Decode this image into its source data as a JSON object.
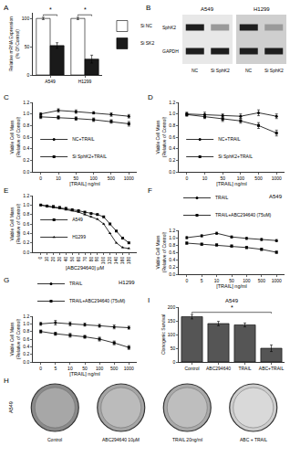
{
  "chart_data": [
    {
      "panel": "A",
      "type": "bar",
      "categories": [
        "A549",
        "H1299"
      ],
      "y_label": "Relative mRNA Expression\n(% Of Control)",
      "ylim": [
        0,
        110
      ],
      "yticks": [
        0,
        50,
        100
      ],
      "grid": false,
      "legend": "right",
      "series": [
        {
          "name": "Si NC",
          "color": "#ffffff",
          "values": [
            100,
            100
          ],
          "errors": [
            2,
            2
          ]
        },
        {
          "name": "Si SK2",
          "color": "#1a1a1a",
          "values": [
            52,
            28
          ],
          "errors": [
            5,
            7
          ]
        }
      ],
      "annotations": [
        {
          "text": "*",
          "x": "A549"
        },
        {
          "text": "*",
          "x": "H1299"
        }
      ]
    },
    {
      "panel": "C",
      "type": "line",
      "categories": [
        "0",
        "10",
        "50",
        "100",
        "500",
        "1000"
      ],
      "x_label": "[TRAIL] ng/ml",
      "y_label": "Viable Cell Mass\n(Relative of Control)",
      "ylim": [
        0,
        1.2
      ],
      "yticks": [
        {
          "value": 0,
          "label": "0.0"
        },
        0.2,
        0.4,
        0.6,
        0.8,
        {
          "value": 1,
          "label": "1.0"
        },
        1.2
      ],
      "grid": false,
      "legend": "bottom left",
      "series": [
        {
          "name": "NC+TRAIL",
          "color": "#000000",
          "marker": "circle",
          "values": [
            1.0,
            1.06,
            1.04,
            1.02,
            0.99,
            0.96
          ],
          "errors": [
            0.02,
            0.03,
            0.03,
            0.02,
            0.03,
            0.03
          ]
        },
        {
          "name": "Si SphK2+TRAIL",
          "color": "#000000",
          "marker": "square",
          "values": [
            0.95,
            0.94,
            0.92,
            0.9,
            0.87,
            0.83
          ],
          "errors": [
            0.03,
            0.03,
            0.03,
            0.03,
            0.03,
            0.04
          ]
        }
      ]
    },
    {
      "panel": "D",
      "type": "line",
      "categories": [
        "0",
        "10",
        "50",
        "100",
        "500",
        "1000"
      ],
      "x_label": "[TRAIL] ng/ml",
      "y_label": "Viable Cell Mass\n(Relative of Control)",
      "ylim": [
        0,
        1.2
      ],
      "yticks": [
        {
          "value": 0,
          "label": "0.0"
        },
        0.2,
        0.4,
        0.6,
        0.8,
        {
          "value": 1,
          "label": "1.0"
        },
        1.2
      ],
      "grid": false,
      "legend": "bottom left",
      "series": [
        {
          "name": "NC+TRAIL",
          "color": "#000000",
          "marker": "circle",
          "values": [
            1.0,
            0.99,
            0.97,
            0.96,
            1.02,
            0.96
          ],
          "errors": [
            0.03,
            0.04,
            0.03,
            0.04,
            0.05,
            0.04
          ]
        },
        {
          "name": "Si SphK2+TRAIL",
          "color": "#000000",
          "marker": "square",
          "values": [
            0.99,
            0.95,
            0.91,
            0.88,
            0.8,
            0.67
          ],
          "errors": [
            0.03,
            0.03,
            0.04,
            0.04,
            0.05,
            0.05
          ]
        }
      ]
    },
    {
      "panel": "E",
      "type": "line",
      "categories": [
        "0",
        "10",
        "20",
        "30",
        "40",
        "50",
        "60",
        "70",
        "80",
        "90",
        "100",
        "120",
        "140",
        "160",
        "180"
      ],
      "x_label": "[ABC294640] μM",
      "y_label": "Viable Cell Mass\n(Relative of Control)",
      "ylim": [
        0,
        1.2
      ],
      "yticks": [
        {
          "value": 0,
          "label": "0.0"
        },
        0.2,
        0.4,
        0.6,
        0.8,
        {
          "value": 1,
          "label": "1.0"
        },
        1.2
      ],
      "grid": false,
      "legend": "bottom left",
      "series": [
        {
          "name": "A549",
          "color": "#000000",
          "marker": "square",
          "values": [
            1.0,
            0.98,
            0.97,
            0.95,
            0.93,
            0.9,
            0.88,
            0.85,
            0.82,
            0.8,
            0.75,
            0.6,
            0.45,
            0.3,
            0.2
          ]
        },
        {
          "name": "H1299",
          "color": "#000000",
          "marker": "triangle-up",
          "values": [
            1.0,
            0.97,
            0.95,
            0.93,
            0.9,
            0.88,
            0.85,
            0.8,
            0.75,
            0.7,
            0.6,
            0.4,
            0.2,
            0.1,
            0.08
          ]
        }
      ]
    },
    {
      "panel": "F",
      "type": "line",
      "title": "A549",
      "categories": [
        "0",
        "5",
        "10",
        "50",
        "100",
        "500",
        "1000"
      ],
      "x_label": "[TRAIL] ng/ml",
      "y_label": "Viable Cell Mass\n(Relative of Control)",
      "ylim": [
        0,
        1.2
      ],
      "yticks": [
        {
          "value": 0,
          "label": "0.0"
        },
        0.2,
        0.4,
        0.6,
        0.8,
        {
          "value": 1,
          "label": "1.0"
        },
        1.2
      ],
      "grid": false,
      "legend": "top",
      "series": [
        {
          "name": "TRAIL",
          "color": "#000000",
          "marker": "circle",
          "values": [
            1.0,
            1.05,
            1.12,
            1.02,
            0.98,
            0.95,
            0.92
          ],
          "errors": [
            0.03,
            0.03,
            0.03,
            0.03,
            0.03,
            0.03,
            0.03
          ]
        },
        {
          "name": "TRAIL+ABC294640 (75uM)",
          "color": "#000000",
          "marker": "square",
          "values": [
            0.85,
            0.82,
            0.8,
            0.77,
            0.73,
            0.68,
            0.6
          ],
          "errors": [
            0.03,
            0.03,
            0.03,
            0.03,
            0.03,
            0.03,
            0.03
          ]
        }
      ]
    },
    {
      "panel": "G",
      "type": "line",
      "title": "H1299",
      "categories": [
        "0",
        "5",
        "10",
        "50",
        "100",
        "500",
        "1000"
      ],
      "x_label": "[TRAIL] ng/ml",
      "y_label": "Viable Cell Mass\n(Relative of Control)",
      "ylim": [
        0,
        1.2
      ],
      "yticks": [
        {
          "value": 0,
          "label": "0.0"
        },
        0.2,
        0.4,
        0.6,
        0.8,
        {
          "value": 1,
          "label": "1.0"
        },
        1.2
      ],
      "grid": false,
      "legend": "top",
      "series": [
        {
          "name": "TRAIL",
          "color": "#000000",
          "marker": "circle",
          "values": [
            1.0,
            1.03,
            1.0,
            0.98,
            0.95,
            0.92,
            0.9
          ],
          "errors": [
            0.04,
            0.06,
            0.05,
            0.04,
            0.04,
            0.05,
            0.04
          ]
        },
        {
          "name": "TRAIL+ABC294640 (75uM)",
          "color": "#000000",
          "marker": "square",
          "values": [
            0.8,
            0.74,
            0.7,
            0.66,
            0.6,
            0.5,
            0.38
          ],
          "errors": [
            0.04,
            0.04,
            0.05,
            0.04,
            0.05,
            0.05,
            0.05
          ]
        }
      ]
    },
    {
      "panel": "I",
      "type": "bar",
      "title": "A549",
      "categories": [
        "Control",
        "ABC294640",
        "TRAIL",
        "ABC+TRAIL"
      ],
      "y_label": "Clonogenic Survival",
      "ylim": [
        0,
        200
      ],
      "yticks": [
        0,
        50,
        100,
        150,
        200
      ],
      "grid": false,
      "color": "#555555",
      "values": [
        165,
        140,
        135,
        50
      ],
      "errors": [
        8,
        8,
        7,
        12
      ],
      "annotations": [
        {
          "text": "*",
          "x": [
            "Control",
            "ABC+TRAIL"
          ]
        }
      ]
    }
  ],
  "blot": {
    "panel": "B",
    "groups": [
      {
        "title": "A549",
        "lanes": [
          "NC",
          "Si SphK2"
        ]
      },
      {
        "title": "H1299",
        "lanes": [
          "NC",
          "Si SphK2"
        ]
      }
    ],
    "rows": [
      "SphK2",
      "GAPDH"
    ]
  },
  "plates": {
    "panel": "H",
    "side_label": "A549",
    "labels": [
      "Control",
      "ABC294640 10μM",
      "TRAIL 20ng/ml",
      "ABC + TRAIL"
    ]
  }
}
